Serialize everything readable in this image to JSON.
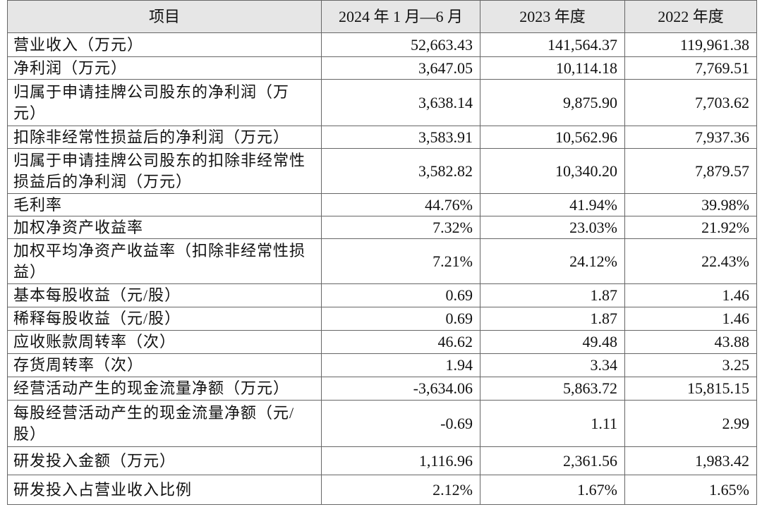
{
  "table": {
    "columns": [
      "项目",
      "2024 年 1 月—6 月",
      "2023 年度",
      "2022 年度"
    ],
    "rows": [
      [
        "营业收入（万元）",
        "52,663.43",
        "141,564.37",
        "119,961.38"
      ],
      [
        "净利润（万元）",
        "3,647.05",
        "10,114.18",
        "7,769.51"
      ],
      [
        "归属于申请挂牌公司股东的净利润（万元）",
        "3,638.14",
        "9,875.90",
        "7,703.62"
      ],
      [
        "扣除非经常性损益后的净利润（万元）",
        "3,583.91",
        "10,562.96",
        "7,937.36"
      ],
      [
        "归属于申请挂牌公司股东的扣除非经常性损益后的净利润（万元）",
        "3,582.82",
        "10,340.20",
        "7,879.57"
      ],
      [
        "毛利率",
        "44.76%",
        "41.94%",
        "39.98%"
      ],
      [
        "加权净资产收益率",
        "7.32%",
        "23.03%",
        "21.92%"
      ],
      [
        "加权平均净资产收益率（扣除非经常性损益）",
        "7.21%",
        "24.12%",
        "22.43%"
      ],
      [
        "基本每股收益（元/股）",
        "0.69",
        "1.87",
        "1.46"
      ],
      [
        "稀释每股收益（元/股）",
        "0.69",
        "1.87",
        "1.46"
      ],
      [
        "应收账款周转率（次）",
        "46.62",
        "49.48",
        "43.88"
      ],
      [
        "存货周转率（次）",
        "1.94",
        "3.34",
        "3.25"
      ],
      [
        "经营活动产生的现金流量净额（万元）",
        "-3,634.06",
        "5,863.72",
        "15,815.15"
      ],
      [
        "每股经营活动产生的现金流量净额（元/股）",
        "-0.69",
        "1.11",
        "2.99"
      ],
      [
        "研发投入金额（万元）",
        "1,116.96",
        "2,361.56",
        "1,983.42"
      ],
      [
        "研发投入占营业收入比例",
        "2.12%",
        "1.67%",
        "1.65%"
      ]
    ]
  }
}
